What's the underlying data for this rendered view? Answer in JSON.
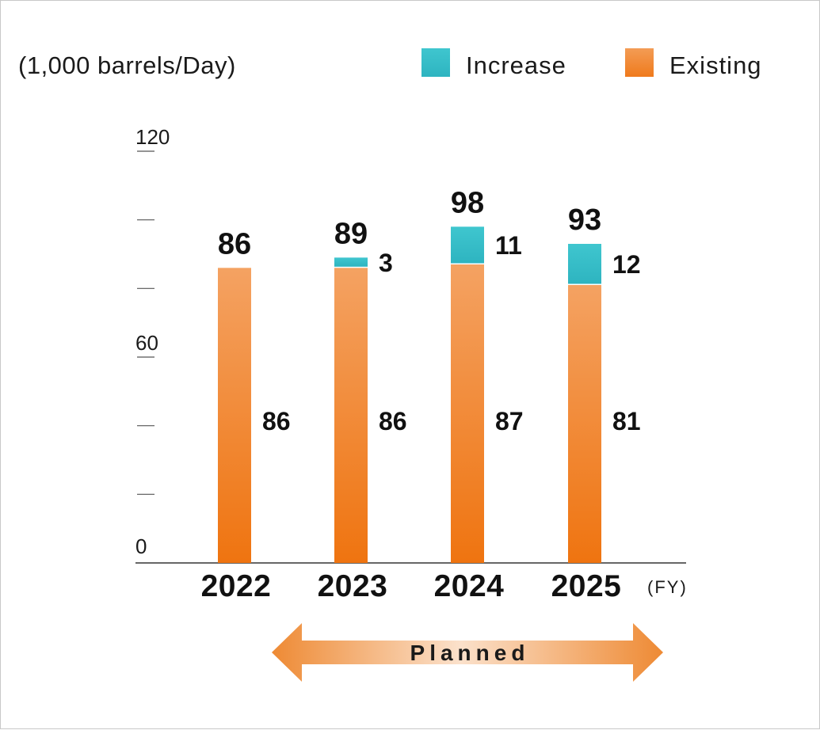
{
  "chart_data": {
    "type": "bar",
    "stacked": true,
    "unit_label": "(1,000 barrels/Day)",
    "categories": [
      "2022",
      "2023",
      "2024",
      "2025"
    ],
    "x_unit": "(FY)",
    "series": [
      {
        "name": "Existing",
        "values": [
          86,
          86,
          87,
          81
        ],
        "color": "#f08a2e"
      },
      {
        "name": "Increase",
        "values": [
          0,
          3,
          11,
          12
        ],
        "color": "#35bfc9"
      }
    ],
    "totals": [
      86,
      89,
      98,
      93
    ],
    "existing_labels": [
      "86",
      "86",
      "87",
      "81"
    ],
    "increase_labels": [
      "",
      "3",
      "11",
      "12"
    ],
    "total_labels": [
      "86",
      "89",
      "98",
      "93"
    ],
    "ylim": [
      0,
      120
    ],
    "yticks": [
      0,
      20,
      40,
      60,
      80,
      100,
      120
    ],
    "ytick_labels": [
      "0",
      "",
      "",
      "60",
      "",
      "",
      "120"
    ],
    "legend": [
      {
        "name": "Increase",
        "color": "#35bfc9"
      },
      {
        "name": "Existing",
        "color": "#f08a2e"
      }
    ],
    "legend_position": "top-right",
    "annotation": {
      "text": "Planned",
      "span": [
        "2023",
        "2025"
      ]
    }
  }
}
